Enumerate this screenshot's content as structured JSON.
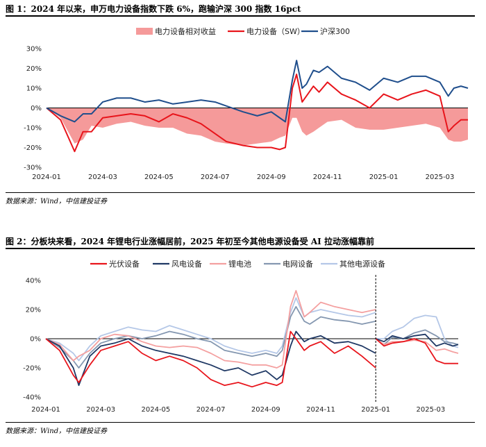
{
  "figure1": {
    "title": "图 1：2024 年以来，申万电力设备指数下跌 6%，跑输沪深 300 指数 16pct",
    "source": "数据来源：Wind，中信建投证券",
    "chart_data": {
      "type": "line",
      "title": "2024 年以来，申万电力设备指数下跌 6%，跑输沪深 300 指数 16pct",
      "ylim": [
        -30,
        30
      ],
      "yticks": [
        -30,
        -20,
        -10,
        0,
        10,
        20,
        30
      ],
      "ytick_labels": [
        "-30%",
        "-20%",
        "-10%",
        "0%",
        "10%",
        "20%",
        "30%"
      ],
      "xlim": [
        0,
        15
      ],
      "xticks": [
        0,
        2,
        4,
        6,
        8,
        10,
        12,
        14
      ],
      "xtick_labels": [
        "2024-01",
        "2024-03",
        "2024-05",
        "2024-07",
        "2024-09",
        "2024-11",
        "2025-01",
        "2025-03"
      ],
      "x": [
        0,
        0.5,
        1,
        1.3,
        1.6,
        2,
        2.5,
        3,
        3.5,
        4,
        4.5,
        5,
        5.5,
        6,
        6.4,
        7,
        7.5,
        8,
        8.3,
        8.5,
        8.75,
        8.9,
        9.1,
        9.25,
        9.5,
        9.7,
        10,
        10.5,
        11,
        11.5,
        12,
        12.5,
        13,
        13.5,
        14,
        14.3,
        14.5,
        14.75,
        15
      ],
      "series": [
        {
          "name": "电力设备相对收益",
          "kind": "area",
          "color": "#f59a9a",
          "values": [
            0,
            -5,
            -18,
            -16,
            -9,
            -10,
            -8,
            -7,
            -9,
            -10,
            -10,
            -13,
            -14,
            -17,
            -18,
            -19,
            -18,
            -17,
            -15,
            -14,
            -5,
            -5,
            -12,
            -14,
            -12,
            -10,
            -7,
            -6,
            -10,
            -11,
            -11,
            -10,
            -9,
            -8,
            -10,
            -16,
            -17,
            -17,
            -16
          ]
        },
        {
          "name": "电力设备（SW）",
          "kind": "line",
          "color": "#e8141b",
          "values": [
            0,
            -6,
            -22,
            -12,
            -12,
            -5,
            -4,
            -3,
            -4,
            -7,
            -3,
            -5,
            -8,
            -13,
            -17,
            -19,
            -20,
            -20,
            -21,
            -20,
            10,
            17,
            3,
            6,
            11,
            8,
            13,
            7,
            4,
            0,
            7,
            4,
            7,
            9,
            6,
            -12,
            -9,
            -6,
            -6
          ]
        },
        {
          "name": "沪深300",
          "kind": "line",
          "color": "#1f4e8c",
          "values": [
            0,
            -4,
            -7,
            -3,
            -3,
            3,
            5,
            5,
            3,
            4,
            2,
            3,
            4,
            3,
            1,
            -2,
            -4,
            -2,
            -5,
            -7,
            14,
            24,
            10,
            12,
            19,
            18,
            21,
            15,
            13,
            9,
            15,
            13,
            16,
            16,
            13,
            6,
            10,
            11,
            10
          ]
        }
      ]
    }
  },
  "figure2": {
    "title": "图 2：分板块来看，2024 年锂电行业涨幅居前，2025 年初至今其他电源设备受 AI 拉动涨幅靠前",
    "source": "数据来源：Wind，中信建投证券",
    "chart_data": {
      "type": "line",
      "title": "分板块来看，2024 年锂电行业涨幅居前，2025 年初至今其他电源设备受 AI 拉动涨幅靠前",
      "ylim": [
        -40,
        40
      ],
      "yticks": [
        -40,
        -20,
        0,
        20,
        40
      ],
      "ytick_labels": [
        "-40%",
        "-20%",
        "0%",
        "20%",
        "40%"
      ],
      "xlim": [
        0,
        15
      ],
      "xticks": [
        0,
        2,
        4,
        6,
        8,
        10,
        12,
        14
      ],
      "xtick_labels": [
        "2024-01",
        "2024-03",
        "2024-05",
        "2024-07",
        "2024-09",
        "2024-11",
        "2025-01",
        "2025-03"
      ],
      "divider_x": 12,
      "x1": [
        0,
        0.5,
        1,
        1.2,
        1.6,
        2,
        2.5,
        3,
        3.5,
        4,
        4.5,
        5,
        5.5,
        6,
        6.5,
        7,
        7.5,
        8,
        8.4,
        8.6,
        8.9,
        9.1,
        9.4,
        9.6,
        10,
        10.5,
        11,
        11.5,
        12
      ],
      "x2": [
        12,
        12.3,
        12.6,
        13,
        13.4,
        13.8,
        14.2,
        14.5,
        14.8,
        15
      ],
      "series": [
        {
          "name": "光伏设备",
          "color": "#e8141b",
          "part1": [
            0,
            -8,
            -25,
            -30,
            -18,
            -8,
            -5,
            -2,
            -10,
            -15,
            -12,
            -15,
            -20,
            -28,
            -32,
            -30,
            -33,
            -30,
            -32,
            -30,
            5,
            0,
            -8,
            -5,
            -2,
            -10,
            -5,
            -12,
            -20
          ],
          "part2": [
            0,
            -5,
            -3,
            -2,
            0,
            -3,
            -15,
            -17,
            -17,
            -17
          ]
        },
        {
          "name": "风电设备",
          "color": "#1f3864",
          "part1": [
            0,
            -5,
            -20,
            -32,
            -12,
            -5,
            -3,
            0,
            -5,
            -8,
            -10,
            -12,
            -15,
            -18,
            -22,
            -20,
            -25,
            -22,
            -28,
            -25,
            -5,
            5,
            -2,
            0,
            2,
            -3,
            -2,
            -5,
            -10
          ],
          "part2": [
            0,
            -2,
            2,
            0,
            2,
            3,
            -5,
            -3,
            -5,
            -4
          ]
        },
        {
          "name": "锂电池",
          "color": "#f4a0a0",
          "part1": [
            0,
            -4,
            -15,
            -12,
            -8,
            0,
            3,
            2,
            -2,
            -5,
            -6,
            -5,
            -6,
            -10,
            -15,
            -16,
            -18,
            -18,
            -20,
            -18,
            22,
            33,
            15,
            18,
            25,
            22,
            20,
            18,
            20
          ],
          "part2": [
            0,
            -4,
            -2,
            -2,
            -1,
            -2,
            -8,
            -7,
            -9,
            -10
          ]
        },
        {
          "name": "电网设备",
          "color": "#8497b0",
          "part1": [
            0,
            -6,
            -15,
            -20,
            -10,
            -3,
            0,
            2,
            0,
            2,
            5,
            3,
            0,
            -2,
            -8,
            -10,
            -12,
            -10,
            -12,
            -8,
            15,
            22,
            12,
            10,
            15,
            13,
            12,
            10,
            12
          ],
          "part2": [
            0,
            -4,
            1,
            0,
            4,
            6,
            2,
            -2,
            -3,
            -4
          ]
        },
        {
          "name": "其他电源设备",
          "color": "#b4c7e7",
          "part1": [
            0,
            -3,
            -10,
            -15,
            -5,
            2,
            5,
            8,
            6,
            5,
            9,
            6,
            3,
            0,
            -5,
            -8,
            -10,
            -8,
            -10,
            -5,
            18,
            28,
            15,
            18,
            20,
            18,
            16,
            15,
            18
          ],
          "part2": [
            0,
            0,
            5,
            8,
            14,
            16,
            15,
            0,
            -5,
            -6
          ]
        }
      ]
    }
  }
}
